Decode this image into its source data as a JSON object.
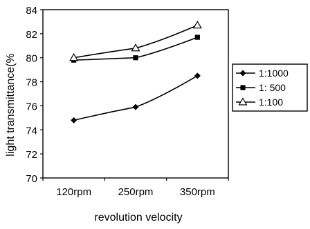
{
  "chart_data": {
    "type": "line",
    "title": "",
    "xlabel": "revolution velocity",
    "ylabel": "light transmittance(%",
    "categories": [
      "120rpm",
      "250rpm",
      "350rpm"
    ],
    "ylim": [
      70,
      84
    ],
    "yticks": [
      70,
      72,
      74,
      76,
      78,
      80,
      82,
      84
    ],
    "grid": false,
    "legend_position": "right",
    "series": [
      {
        "name": "1:1000",
        "marker": "diamond",
        "color": "#000000",
        "values": [
          74.8,
          75.9,
          78.5
        ]
      },
      {
        "name": "1: 500",
        "marker": "square",
        "color": "#000000",
        "values": [
          79.8,
          80.0,
          81.7
        ]
      },
      {
        "name": "1:100",
        "marker": "triangle",
        "color": "#000000",
        "values": [
          80.0,
          80.8,
          82.7
        ]
      }
    ]
  }
}
